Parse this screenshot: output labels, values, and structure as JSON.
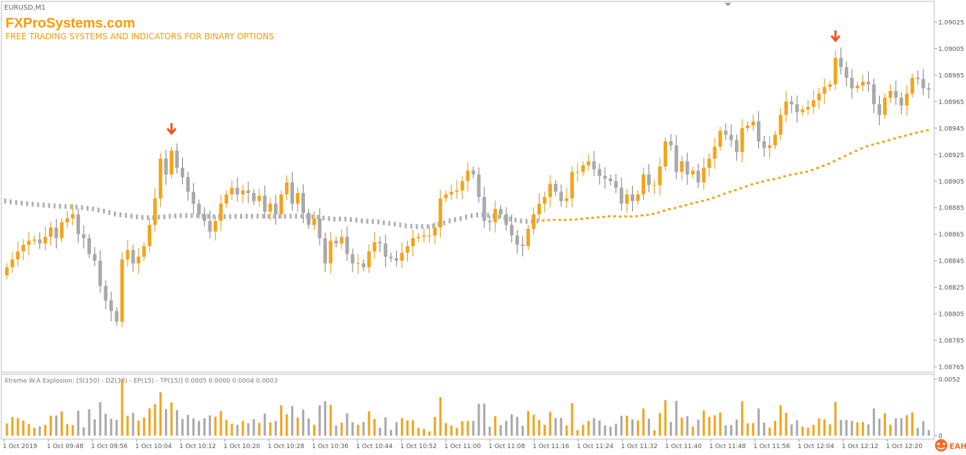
{
  "window": {
    "symbol_label": "EURUSD,M1"
  },
  "branding": {
    "site_name": "FXProSystems.com",
    "tagline": "FREE TRADING SYSTEMS AND INDICATORS FOR BINARY OPTIONS",
    "watermark": "EAHub"
  },
  "colors": {
    "bull": "#f5a31a",
    "bear": "#a9a9a9",
    "arrow": "#ff4a12",
    "brand": "#ff9900",
    "axis_text": "#555555",
    "frame": "#b8b8b8"
  },
  "indicator": {
    "label": "Xtreme W.A Explosion: [S(150) - DZ(30) - EP(15) - TP(15)] 0.0005 0.0000 0.0004 0.0003"
  },
  "chart_data": [
    {
      "type": "candlestick",
      "title": "",
      "symbol": "EURUSD",
      "timeframe": "M1",
      "y_ticks": [
        "1.09025",
        "1.09005",
        "1.08985",
        "1.08965",
        "1.08945",
        "1.08925",
        "1.08905",
        "1.08885",
        "1.08865",
        "1.08845",
        "1.08825",
        "1.08805",
        "1.08785",
        "1.08765"
      ],
      "ylim": [
        1.0876,
        1.09035
      ],
      "x_ticks": [
        "1 Oct 2019",
        "1 Oct 09:48",
        "1 Oct 09:56",
        "1 Oct 10:04",
        "1 Oct 10:12",
        "1 Oct 10:20",
        "1 Oct 10:28",
        "1 Oct 10:36",
        "1 Oct 10:44",
        "1 Oct 10:52",
        "1 Oct 11:00",
        "1 Oct 11:08",
        "1 Oct 11:16",
        "1 Oct 11:24",
        "1 Oct 11:32",
        "1 Oct 11:40",
        "1 Oct 11:48",
        "1 Oct 11:56",
        "1 Oct 12:04",
        "1 Oct 12:12",
        "1 Oct 12:20"
      ],
      "close": [
        1.0884,
        1.08846,
        1.08852,
        1.08857,
        1.0886,
        1.08861,
        1.08858,
        1.08863,
        1.0887,
        1.08862,
        1.08874,
        1.08877,
        1.0888,
        1.08865,
        1.08862,
        1.0885,
        1.08845,
        1.08826,
        1.08815,
        1.08807,
        1.08799,
        1.08846,
        1.08853,
        1.08843,
        1.08848,
        1.08856,
        1.08872,
        1.08892,
        1.08922,
        1.0891,
        1.08928,
        1.08915,
        1.08908,
        1.08897,
        1.08888,
        1.0888,
        1.08875,
        1.08867,
        1.08875,
        1.08888,
        1.08895,
        1.089,
        1.08895,
        1.08898,
        1.08896,
        1.0889,
        1.08894,
        1.08882,
        1.08888,
        1.0888,
        1.08895,
        1.08904,
        1.08888,
        1.08896,
        1.08881,
        1.08872,
        1.08877,
        1.08862,
        1.08843,
        1.0886,
        1.08858,
        1.08863,
        1.0885,
        1.08843,
        1.08843,
        1.0884,
        1.08852,
        1.08859,
        1.08858,
        1.08848,
        1.08847,
        1.08845,
        1.08851,
        1.08856,
        1.08862,
        1.08863,
        1.08864,
        1.08864,
        1.0887,
        1.08892,
        1.08895,
        1.08897,
        1.08898,
        1.08905,
        1.08913,
        1.0891,
        1.08893,
        1.08875,
        1.08874,
        1.08884,
        1.0888,
        1.08872,
        1.08864,
        1.08857,
        1.08856,
        1.08869,
        1.0888,
        1.08888,
        1.08893,
        1.08903,
        1.08897,
        1.0889,
        1.08892,
        1.08912,
        1.08912,
        1.08917,
        1.0892,
        1.08914,
        1.08909,
        1.08907,
        1.08905,
        1.089,
        1.08888,
        1.08895,
        1.0889,
        1.08895,
        1.0891,
        1.08902,
        1.08902,
        1.08916,
        1.08935,
        1.08932,
        1.08912,
        1.0892,
        1.0891,
        1.08913,
        1.08904,
        1.08915,
        1.08922,
        1.08931,
        1.08943,
        1.0894,
        1.08936,
        1.08927,
        1.08945,
        1.08947,
        1.0895,
        1.08935,
        1.0893,
        1.08932,
        1.0894,
        1.08955,
        1.08965,
        1.08963,
        1.08957,
        1.08959,
        1.08961,
        1.08966,
        1.08971,
        1.08976,
        1.08978,
        1.08998,
        1.08991,
        1.08983,
        1.08975,
        1.08977,
        1.0898,
        1.08978,
        1.08963,
        1.08955,
        1.08968,
        1.08973,
        1.08968,
        1.08962,
        1.08971,
        1.08983,
        1.08982,
        1.08975,
        1.08974
      ],
      "indicator_series": {
        "name": "Xtreme W.A Explosion",
        "y_ticks": [
          "0.0052",
          "0"
        ],
        "ylim": [
          0,
          0.0052
        ]
      }
    }
  ]
}
